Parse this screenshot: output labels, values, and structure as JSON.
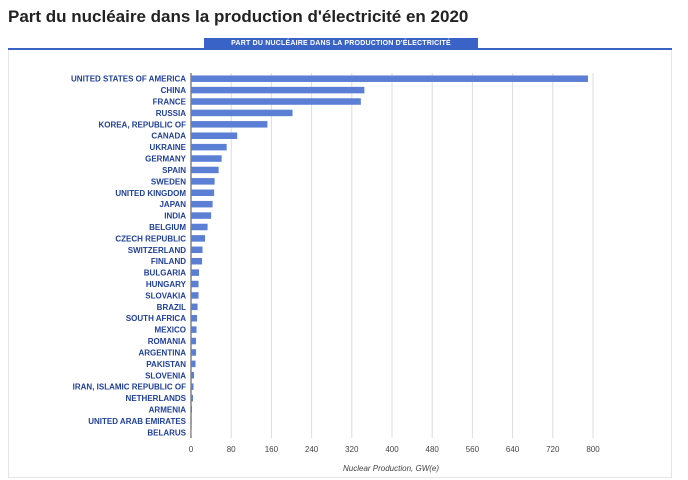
{
  "page": {
    "title": "Part du nucléaire dans la production d'électricité en 2020"
  },
  "chart_data": {
    "type": "bar",
    "orientation": "horizontal",
    "title": "PART DU NUCLÉAIRE DANS LA PRODUCTION D'ÉLECTRICITÉ",
    "xlabel": "Nuclear Production, GW(e)",
    "ylabel": "",
    "xlim": [
      0,
      800
    ],
    "xticks": [
      0,
      80,
      160,
      240,
      320,
      400,
      480,
      560,
      640,
      720,
      800
    ],
    "grid": true,
    "legend": "none",
    "bar_color": "#5b7fd4",
    "categories": [
      "UNITED STATES OF AMERICA",
      "CHINA",
      "FRANCE",
      "RUSSIA",
      "KOREA, REPUBLIC OF",
      "CANADA",
      "UKRAINE",
      "GERMANY",
      "SPAIN",
      "SWEDEN",
      "UNITED KINGDOM",
      "JAPAN",
      "INDIA",
      "BELGIUM",
      "CZECH REPUBLIC",
      "SWITZERLAND",
      "FINLAND",
      "BULGARIA",
      "HUNGARY",
      "SLOVAKIA",
      "BRAZIL",
      "SOUTH AFRICA",
      "MEXICO",
      "ROMANIA",
      "ARGENTINA",
      "PAKISTAN",
      "SLOVENIA",
      "IRAN, ISLAMIC REPUBLIC OF",
      "NETHERLANDS",
      "ARMENIA",
      "UNITED ARAB EMIRATES",
      "BELARUS"
    ],
    "values": [
      790,
      345,
      338,
      202,
      152,
      92,
      71,
      61,
      55,
      47,
      46,
      43,
      40,
      33,
      28,
      23,
      22,
      16,
      15,
      15,
      13,
      12,
      11,
      10,
      10,
      9,
      6,
      5,
      4,
      2,
      1.5,
      0.3
    ]
  }
}
